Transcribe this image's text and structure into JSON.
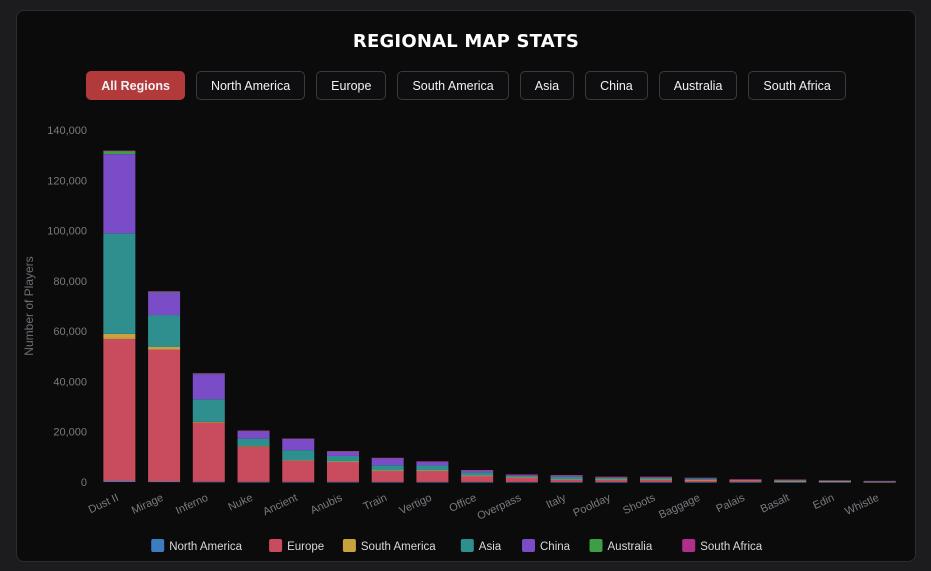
{
  "title": "REGIONAL MAP STATS",
  "filters": [
    {
      "label": "All Regions",
      "active": true
    },
    {
      "label": "North America",
      "active": false
    },
    {
      "label": "Europe",
      "active": false
    },
    {
      "label": "South America",
      "active": false
    },
    {
      "label": "Asia",
      "active": false
    },
    {
      "label": "China",
      "active": false
    },
    {
      "label": "Australia",
      "active": false
    },
    {
      "label": "South Africa",
      "active": false
    }
  ],
  "chart_data": {
    "type": "bar",
    "stacked": true,
    "ylabel": "Number of Players",
    "xlabel": "",
    "ylim": [
      0,
      140000
    ],
    "ytick_step": 20000,
    "ytick_labels": [
      "0",
      "20,000",
      "40,000",
      "60,000",
      "80,000",
      "100,000",
      "120,000",
      "140,000"
    ],
    "categories": [
      "Dust II",
      "Mirage",
      "Inferno",
      "Nuke",
      "Ancient",
      "Anubis",
      "Train",
      "Vertigo",
      "Office",
      "Overpass",
      "Italy",
      "Poolday",
      "Shoots",
      "Baggage",
      "Palais",
      "Basalt",
      "Edin",
      "Whistle"
    ],
    "series": [
      {
        "name": "North America",
        "color": "#3b7dbf",
        "values": [
          400,
          200,
          100,
          50,
          50,
          50,
          30,
          30,
          20,
          20,
          10,
          10,
          10,
          10,
          10,
          10,
          10,
          5
        ]
      },
      {
        "name": "Europe",
        "color": "#c84b5e",
        "values": [
          56500,
          52500,
          23500,
          14000,
          8500,
          8000,
          4500,
          4500,
          2500,
          1800,
          1000,
          1000,
          1000,
          800,
          800,
          400,
          200,
          100
        ]
      },
      {
        "name": "South America",
        "color": "#c9a23e",
        "values": [
          2000,
          1000,
          300,
          200,
          100,
          100,
          50,
          50,
          30,
          20,
          20,
          10,
          10,
          10,
          10,
          10,
          10,
          5
        ]
      },
      {
        "name": "Asia",
        "color": "#2f8f8f",
        "values": [
          40000,
          12700,
          9000,
          3000,
          4000,
          2200,
          2100,
          2000,
          1200,
          600,
          1000,
          600,
          600,
          500,
          100,
          200,
          200,
          100
        ]
      },
      {
        "name": "China",
        "color": "#7a4cc7",
        "values": [
          31500,
          9000,
          10000,
          3000,
          4500,
          1800,
          2800,
          1500,
          900,
          500,
          600,
          400,
          400,
          300,
          100,
          300,
          200,
          200
        ]
      },
      {
        "name": "Australia",
        "color": "#3e9e46",
        "values": [
          1300,
          400,
          300,
          200,
          100,
          100,
          100,
          100,
          50,
          50,
          50,
          30,
          30,
          30,
          20,
          20,
          10,
          10
        ]
      },
      {
        "name": "South Africa",
        "color": "#b02f8a",
        "values": [
          100,
          50,
          50,
          30,
          30,
          20,
          20,
          20,
          10,
          10,
          10,
          10,
          10,
          10,
          10,
          10,
          10,
          10
        ]
      }
    ],
    "grid": false,
    "legend_position": "bottom"
  }
}
